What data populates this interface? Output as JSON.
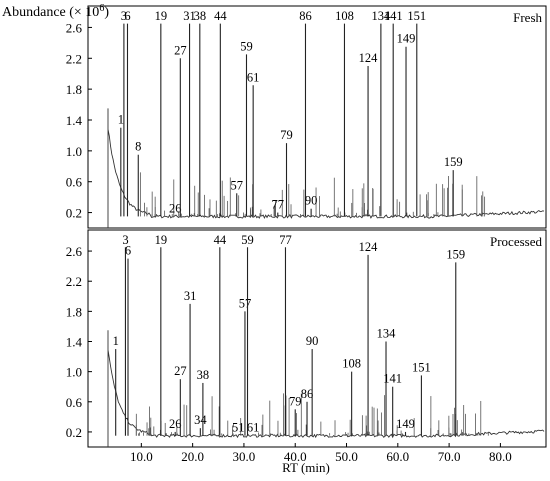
{
  "chart_data": [
    {
      "type": "line",
      "panel": "top",
      "title": "",
      "panel_label": "Fresh",
      "ylabel": "Abundance (× 10",
      "ylabel_sup": "6",
      "ylabel_close": ")",
      "xlabel": "",
      "ylim": [
        0.0,
        2.8
      ],
      "yticks": [
        0.2,
        0.6,
        1.0,
        1.4,
        1.8,
        2.2,
        2.6
      ],
      "ytick_labels": [
        "0.2",
        "0.6",
        "1.0",
        "1.4",
        "1.8",
        "2.2",
        "2.6"
      ],
      "xlim": [
        0,
        89
      ],
      "grid": false,
      "peaks": [
        {
          "label": "1",
          "rt": 6.0,
          "height": 1.3
        },
        {
          "label": "3",
          "rt": 6.6,
          "height": 2.65
        },
        {
          "label": "6",
          "rt": 7.3,
          "height": 2.65
        },
        {
          "label": "8",
          "rt": 9.4,
          "height": 0.95
        },
        {
          "label": "19",
          "rt": 13.8,
          "height": 2.65
        },
        {
          "label": "26",
          "rt": 16.6,
          "height": 0.15
        },
        {
          "label": "27",
          "rt": 17.6,
          "height": 2.2
        },
        {
          "label": "31",
          "rt": 19.4,
          "height": 2.65
        },
        {
          "label": "38",
          "rt": 21.4,
          "height": 2.65
        },
        {
          "label": "44",
          "rt": 25.4,
          "height": 2.65
        },
        {
          "label": "57",
          "rt": 28.6,
          "height": 0.45
        },
        {
          "label": "59",
          "rt": 30.5,
          "height": 2.25
        },
        {
          "label": "61",
          "rt": 31.8,
          "height": 1.85
        },
        {
          "label": "77",
          "rt": 36.6,
          "height": 0.2
        },
        {
          "label": "79",
          "rt": 38.3,
          "height": 1.1
        },
        {
          "label": "86",
          "rt": 42.0,
          "height": 2.65
        },
        {
          "label": "90",
          "rt": 43.1,
          "height": 0.25
        },
        {
          "label": "108",
          "rt": 49.6,
          "height": 2.65
        },
        {
          "label": "124",
          "rt": 54.2,
          "height": 2.1
        },
        {
          "label": "134",
          "rt": 56.7,
          "height": 2.65
        },
        {
          "label": "141",
          "rt": 59.1,
          "height": 2.65
        },
        {
          "label": "149",
          "rt": 61.6,
          "height": 2.35
        },
        {
          "label": "151",
          "rt": 63.7,
          "height": 2.65
        },
        {
          "label": "159",
          "rt": 70.8,
          "height": 0.75
        }
      ]
    },
    {
      "type": "line",
      "panel": "bottom",
      "title": "",
      "panel_label": "Processed",
      "xlabel": "RT (min)",
      "ylabel": "",
      "ylim": [
        0.0,
        2.8
      ],
      "yticks": [
        0.2,
        0.6,
        1.0,
        1.4,
        1.8,
        2.2,
        2.6
      ],
      "ytick_labels": [
        "0.2",
        "0.6",
        "1.0",
        "1.4",
        "1.8",
        "2.2",
        "2.6"
      ],
      "xlim": [
        0,
        89
      ],
      "xticks": [
        10,
        20,
        30,
        40,
        50,
        60,
        70,
        80
      ],
      "xtick_labels": [
        "10.0",
        "20.0",
        "30.0",
        "40.0",
        "50.0",
        "60.0",
        "70.0",
        "80.0"
      ],
      "grid": false,
      "peaks": [
        {
          "label": "1",
          "rt": 5.0,
          "height": 1.3
        },
        {
          "label": "3",
          "rt": 6.9,
          "height": 2.65
        },
        {
          "label": "6",
          "rt": 7.4,
          "height": 2.5
        },
        {
          "label": "19",
          "rt": 13.8,
          "height": 2.65
        },
        {
          "label": "26",
          "rt": 16.6,
          "height": 0.2
        },
        {
          "label": "27",
          "rt": 17.6,
          "height": 0.9
        },
        {
          "label": "31",
          "rt": 19.5,
          "height": 1.9
        },
        {
          "label": "34",
          "rt": 21.5,
          "height": 0.25
        },
        {
          "label": "38",
          "rt": 22.0,
          "height": 0.85
        },
        {
          "label": "44",
          "rt": 25.3,
          "height": 2.65
        },
        {
          "label": "51",
          "rt": 28.9,
          "height": 0.15
        },
        {
          "label": "57",
          "rt": 30.2,
          "height": 1.8
        },
        {
          "label": "59",
          "rt": 30.7,
          "height": 2.65
        },
        {
          "label": "61",
          "rt": 31.8,
          "height": 0.15
        },
        {
          "label": "77",
          "rt": 38.1,
          "height": 2.65
        },
        {
          "label": "79",
          "rt": 40.0,
          "height": 0.5
        },
        {
          "label": "86",
          "rt": 42.3,
          "height": 0.6
        },
        {
          "label": "90",
          "rt": 43.3,
          "height": 1.3
        },
        {
          "label": "108",
          "rt": 51.0,
          "height": 1.0
        },
        {
          "label": "124",
          "rt": 54.2,
          "height": 2.55
        },
        {
          "label": "134",
          "rt": 57.7,
          "height": 1.4
        },
        {
          "label": "141",
          "rt": 59.0,
          "height": 0.8
        },
        {
          "label": "149",
          "rt": 61.5,
          "height": 0.2
        },
        {
          "label": "151",
          "rt": 64.6,
          "height": 0.95
        },
        {
          "label": "159",
          "rt": 71.3,
          "height": 2.45
        }
      ]
    }
  ]
}
